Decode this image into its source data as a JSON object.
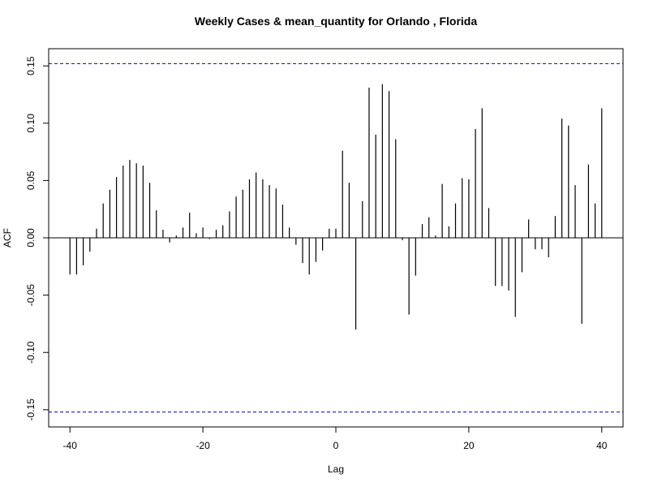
{
  "chart_data": {
    "type": "bar",
    "title": "Weekly Cases & mean_quantity for Orlando , Florida",
    "xlabel": "Lag",
    "ylabel": "ACF",
    "xlim": [
      -40,
      40
    ],
    "ylim": [
      -0.165,
      0.165
    ],
    "x_ticks": [
      -40,
      -20,
      0,
      20,
      40
    ],
    "y_ticks": [
      -0.15,
      -0.1,
      -0.05,
      0.0,
      0.05,
      0.1,
      0.15
    ],
    "y_tick_labels": [
      "-0.15",
      "-0.10",
      "-0.05",
      "0.00",
      "0.05",
      "0.10",
      "0.15"
    ],
    "confidence_bound": 0.152,
    "colors": {
      "bars": "#000000",
      "confidence": "#0000cc",
      "zero_line": "#000000",
      "frame": "#000000"
    },
    "lags": [
      -40,
      -39,
      -38,
      -37,
      -36,
      -35,
      -34,
      -33,
      -32,
      -31,
      -30,
      -29,
      -28,
      -27,
      -26,
      -25,
      -24,
      -23,
      -22,
      -21,
      -20,
      -19,
      -18,
      -17,
      -16,
      -15,
      -14,
      -13,
      -12,
      -11,
      -10,
      -9,
      -8,
      -7,
      -6,
      -5,
      -4,
      -3,
      -2,
      -1,
      0,
      1,
      2,
      3,
      4,
      5,
      6,
      7,
      8,
      9,
      10,
      11,
      12,
      13,
      14,
      15,
      16,
      17,
      18,
      19,
      20,
      21,
      22,
      23,
      24,
      25,
      26,
      27,
      28,
      29,
      30,
      31,
      32,
      33,
      34,
      35,
      36,
      37,
      38,
      39,
      40
    ],
    "values": [
      -0.032,
      -0.032,
      -0.024,
      -0.012,
      0.008,
      0.03,
      0.042,
      0.053,
      0.063,
      0.068,
      0.065,
      0.063,
      0.048,
      0.024,
      0.007,
      -0.004,
      0.002,
      0.009,
      0.022,
      0.004,
      0.009,
      -0.001,
      0.007,
      0.011,
      0.023,
      0.036,
      0.042,
      0.051,
      0.057,
      0.051,
      0.046,
      0.043,
      0.029,
      0.009,
      -0.006,
      -0.022,
      -0.032,
      -0.021,
      -0.011,
      0.008,
      0.008,
      0.076,
      0.048,
      -0.08,
      0.032,
      0.131,
      0.09,
      0.134,
      0.128,
      0.086,
      -0.002,
      -0.067,
      -0.033,
      0.012,
      0.018,
      0.002,
      0.047,
      0.01,
      0.03,
      0.052,
      0.051,
      0.095,
      0.113,
      0.026,
      -0.042,
      -0.042,
      -0.046,
      -0.069,
      -0.03,
      0.016,
      -0.01,
      -0.01,
      -0.017,
      0.019,
      0.104,
      0.098,
      0.046,
      -0.075,
      0.064,
      0.03,
      0.113
    ]
  }
}
